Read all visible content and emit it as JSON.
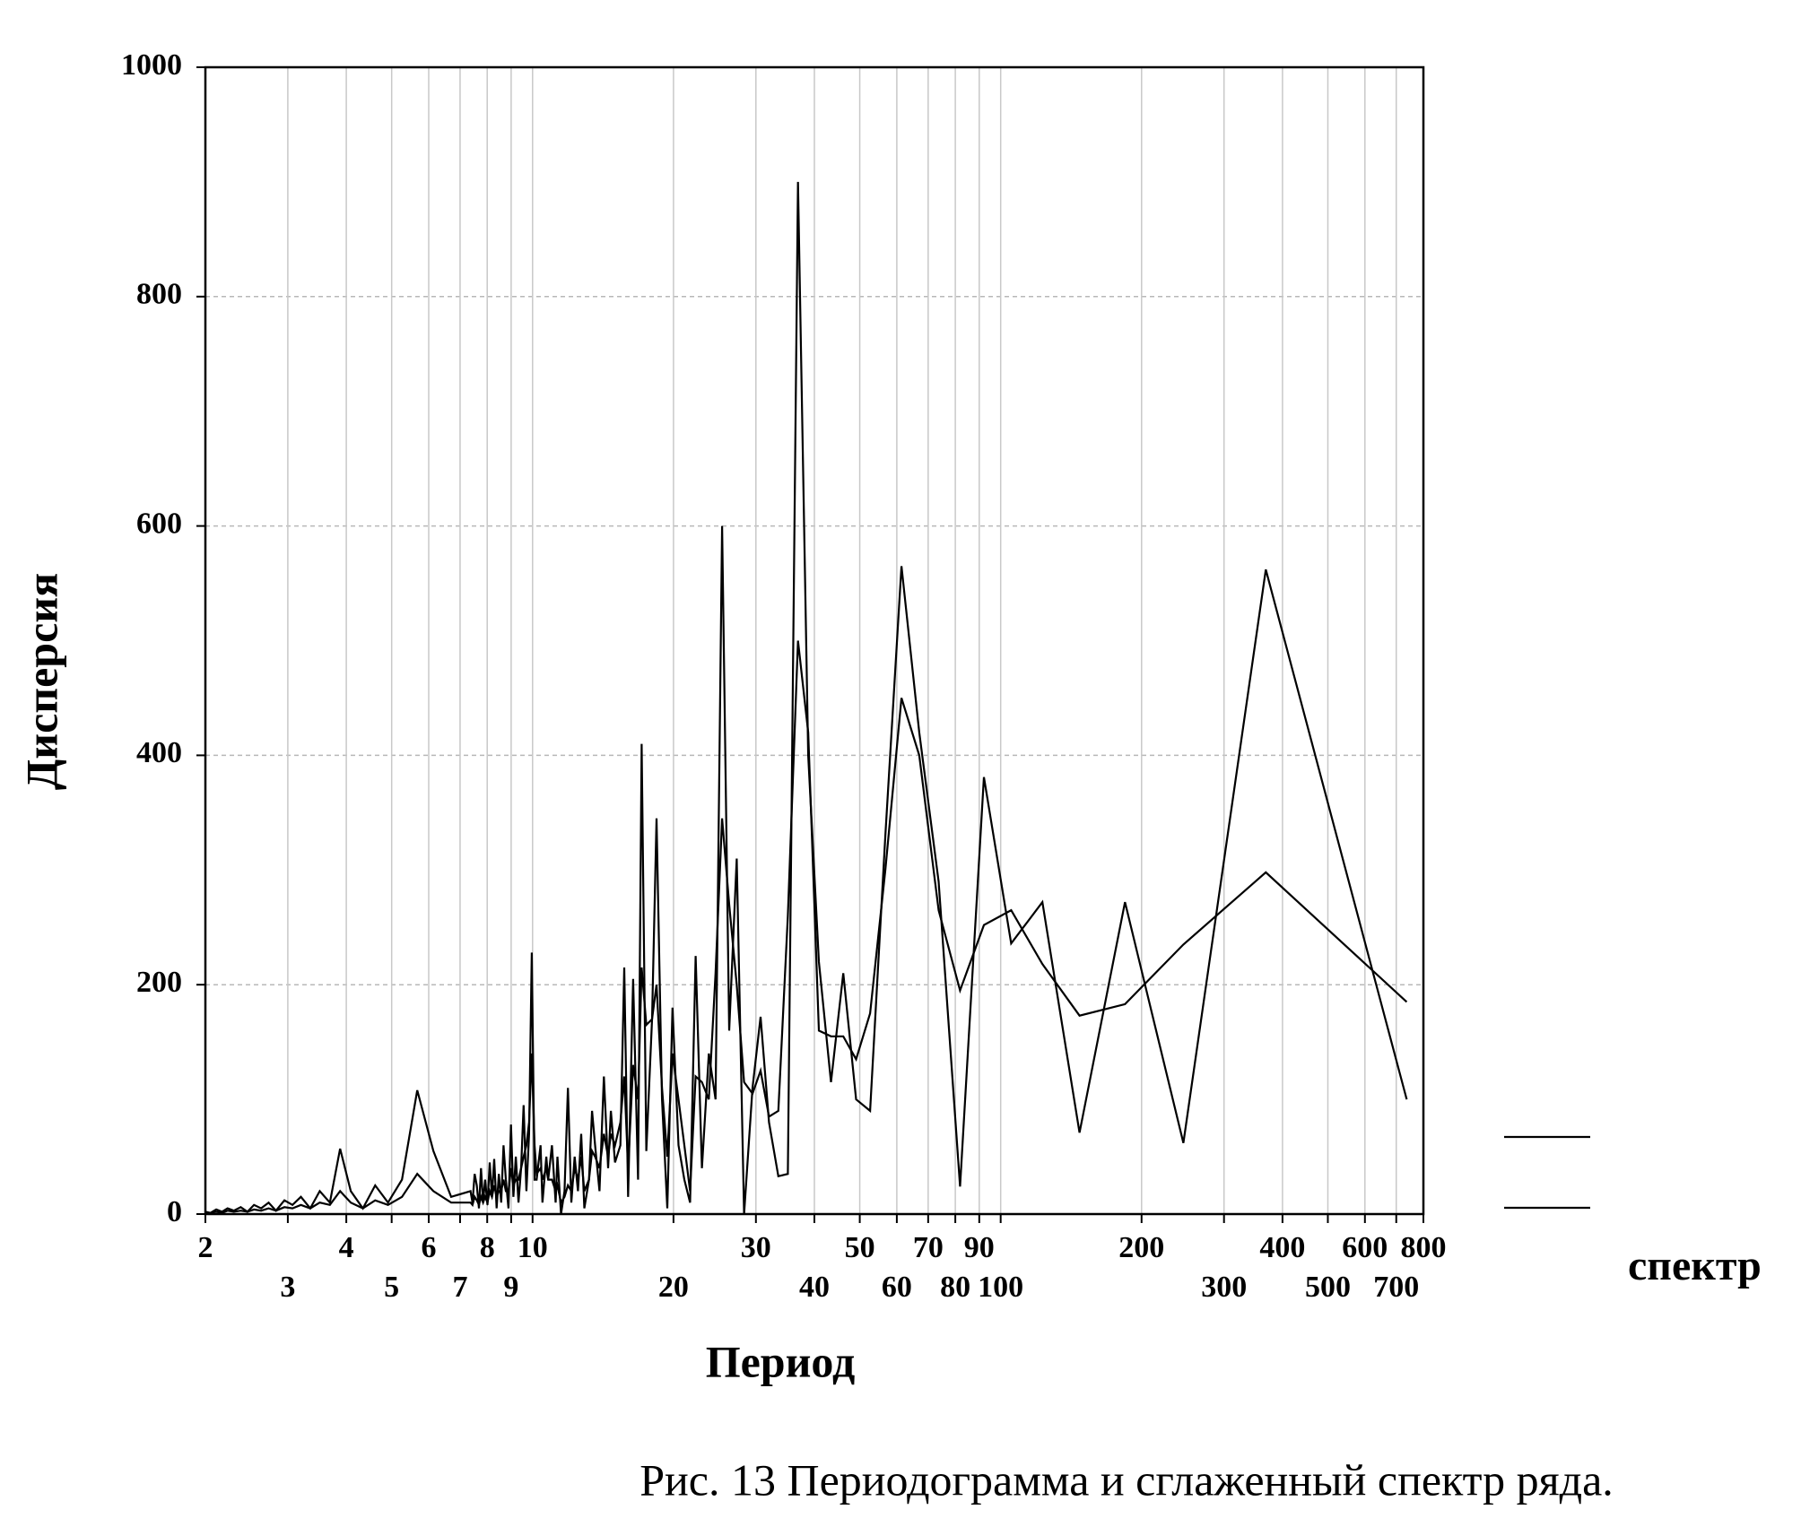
{
  "chart_data": {
    "type": "line",
    "title": "Рис. 13 Периодограмма и сглаженный спектр ряда.",
    "x_label": "Период",
    "y_label": "Дисперсия",
    "legend_label": "спектр",
    "xscale": "log",
    "grid": true,
    "xlim": [
      2,
      800
    ],
    "ylim": [
      0,
      1000
    ],
    "xticks": [
      2,
      3,
      4,
      5,
      6,
      7,
      8,
      9,
      10,
      20,
      30,
      40,
      50,
      60,
      70,
      80,
      90,
      100,
      200,
      300,
      400,
      500,
      600,
      700,
      800
    ],
    "yticks": [
      0,
      200,
      400,
      600,
      800,
      1000
    ],
    "x": [
      737,
      368.5,
      245.7,
      184.3,
      147.4,
      122.8,
      105.3,
      92.1,
      81.9,
      73.7,
      67,
      61.4,
      56.7,
      52.6,
      49.1,
      46.1,
      43.4,
      40.9,
      38.8,
      36.9,
      35.1,
      33.5,
      32,
      30.7,
      29.5,
      28.3,
      27.3,
      26.3,
      25.4,
      24.6,
      23.8,
      23,
      22.3,
      21.7,
      21.1,
      20.5,
      19.9,
      19.4,
      18.9,
      18.4,
      18,
      17.5,
      17.1,
      16.8,
      16.4,
      16,
      15.7,
      15.4,
      15,
      14.7,
      14.5,
      14.2,
      13.9,
      13.6,
      13.4,
      13.2,
      12.9,
      12.7,
      12.5,
      12.3,
      12.1,
      11.9,
      11.7,
      11.5,
      11.3,
      11.2,
      11,
      10.8,
      10.7,
      10.5,
      10.4,
      10.2,
      10.1,
      9.96,
      9.83,
      9.7,
      9.57,
      9.45,
      9.33,
      9.21,
      9.1,
      8.99,
      8.88,
      8.77,
      8.67,
      8.57,
      8.47,
      8.38,
      8.28,
      8.19,
      8.1,
      8.01,
      7.92,
      7.84,
      7.76,
      7.68,
      7.6,
      7.52,
      7.44,
      7.37,
      6.7,
      6.14,
      5.67,
      5.26,
      4.91,
      4.61,
      4.34,
      4.09,
      3.88,
      3.69,
      3.51,
      3.35,
      3.2,
      3.07,
      2.95,
      2.83,
      2.73,
      2.63,
      2.54,
      2.46,
      2.38,
      2.3,
      2.23,
      2.17,
      2.11,
      2.05,
      2
    ],
    "series": [
      {
        "color": "#000000",
        "values": [
          100,
          562,
          62,
          272,
          71,
          272,
          236,
          381,
          24,
          290,
          420,
          565,
          330,
          90,
          100,
          210,
          115,
          220,
          400,
          900,
          35,
          33,
          80,
          172,
          110,
          0,
          310,
          160,
          600,
          100,
          140,
          40,
          225,
          10,
          30,
          60,
          180,
          5,
          100,
          345,
          170,
          55,
          410,
          30,
          205,
          15,
          215,
          60,
          45,
          90,
          40,
          120,
          20,
          60,
          90,
          30,
          5,
          70,
          20,
          50,
          10,
          110,
          20,
          0,
          50,
          10,
          60,
          30,
          50,
          10,
          60,
          30,
          30,
          228,
          70,
          20,
          95,
          40,
          10,
          50,
          15,
          78,
          5,
          30,
          60,
          10,
          35,
          5,
          48,
          15,
          45,
          8,
          30,
          10,
          40,
          5,
          25,
          35,
          10,
          20,
          15,
          55,
          108,
          30,
          10,
          25,
          5,
          20,
          57,
          10,
          20,
          5,
          15,
          8,
          12,
          3,
          10,
          5,
          8,
          2,
          6,
          3,
          5,
          2,
          4,
          1,
          2
        ]
      },
      {
        "color": "#000000",
        "values": [
          185,
          298,
          235,
          183,
          173,
          218,
          265,
          252,
          195,
          265,
          400,
          450,
          300,
          175,
          135,
          155,
          155,
          160,
          420,
          500,
          260,
          90,
          85,
          125,
          105,
          115,
          200,
          270,
          345,
          210,
          100,
          115,
          120,
          20,
          60,
          100,
          140,
          50,
          110,
          200,
          170,
          165,
          215,
          100,
          130,
          40,
          120,
          80,
          60,
          70,
          50,
          70,
          40,
          50,
          55,
          30,
          20,
          50,
          30,
          40,
          20,
          25,
          15,
          10,
          25,
          20,
          30,
          30,
          40,
          30,
          40,
          35,
          60,
          140,
          80,
          60,
          50,
          40,
          30,
          30,
          25,
          40,
          20,
          20,
          30,
          20,
          20,
          15,
          25,
          15,
          20,
          10,
          15,
          10,
          15,
          8,
          12,
          15,
          8,
          10,
          10,
          20,
          35,
          15,
          8,
          12,
          5,
          10,
          20,
          8,
          10,
          5,
          8,
          5,
          6,
          3,
          5,
          3,
          4,
          2,
          3,
          2,
          3,
          1,
          2,
          1,
          1
        ]
      }
    ]
  }
}
